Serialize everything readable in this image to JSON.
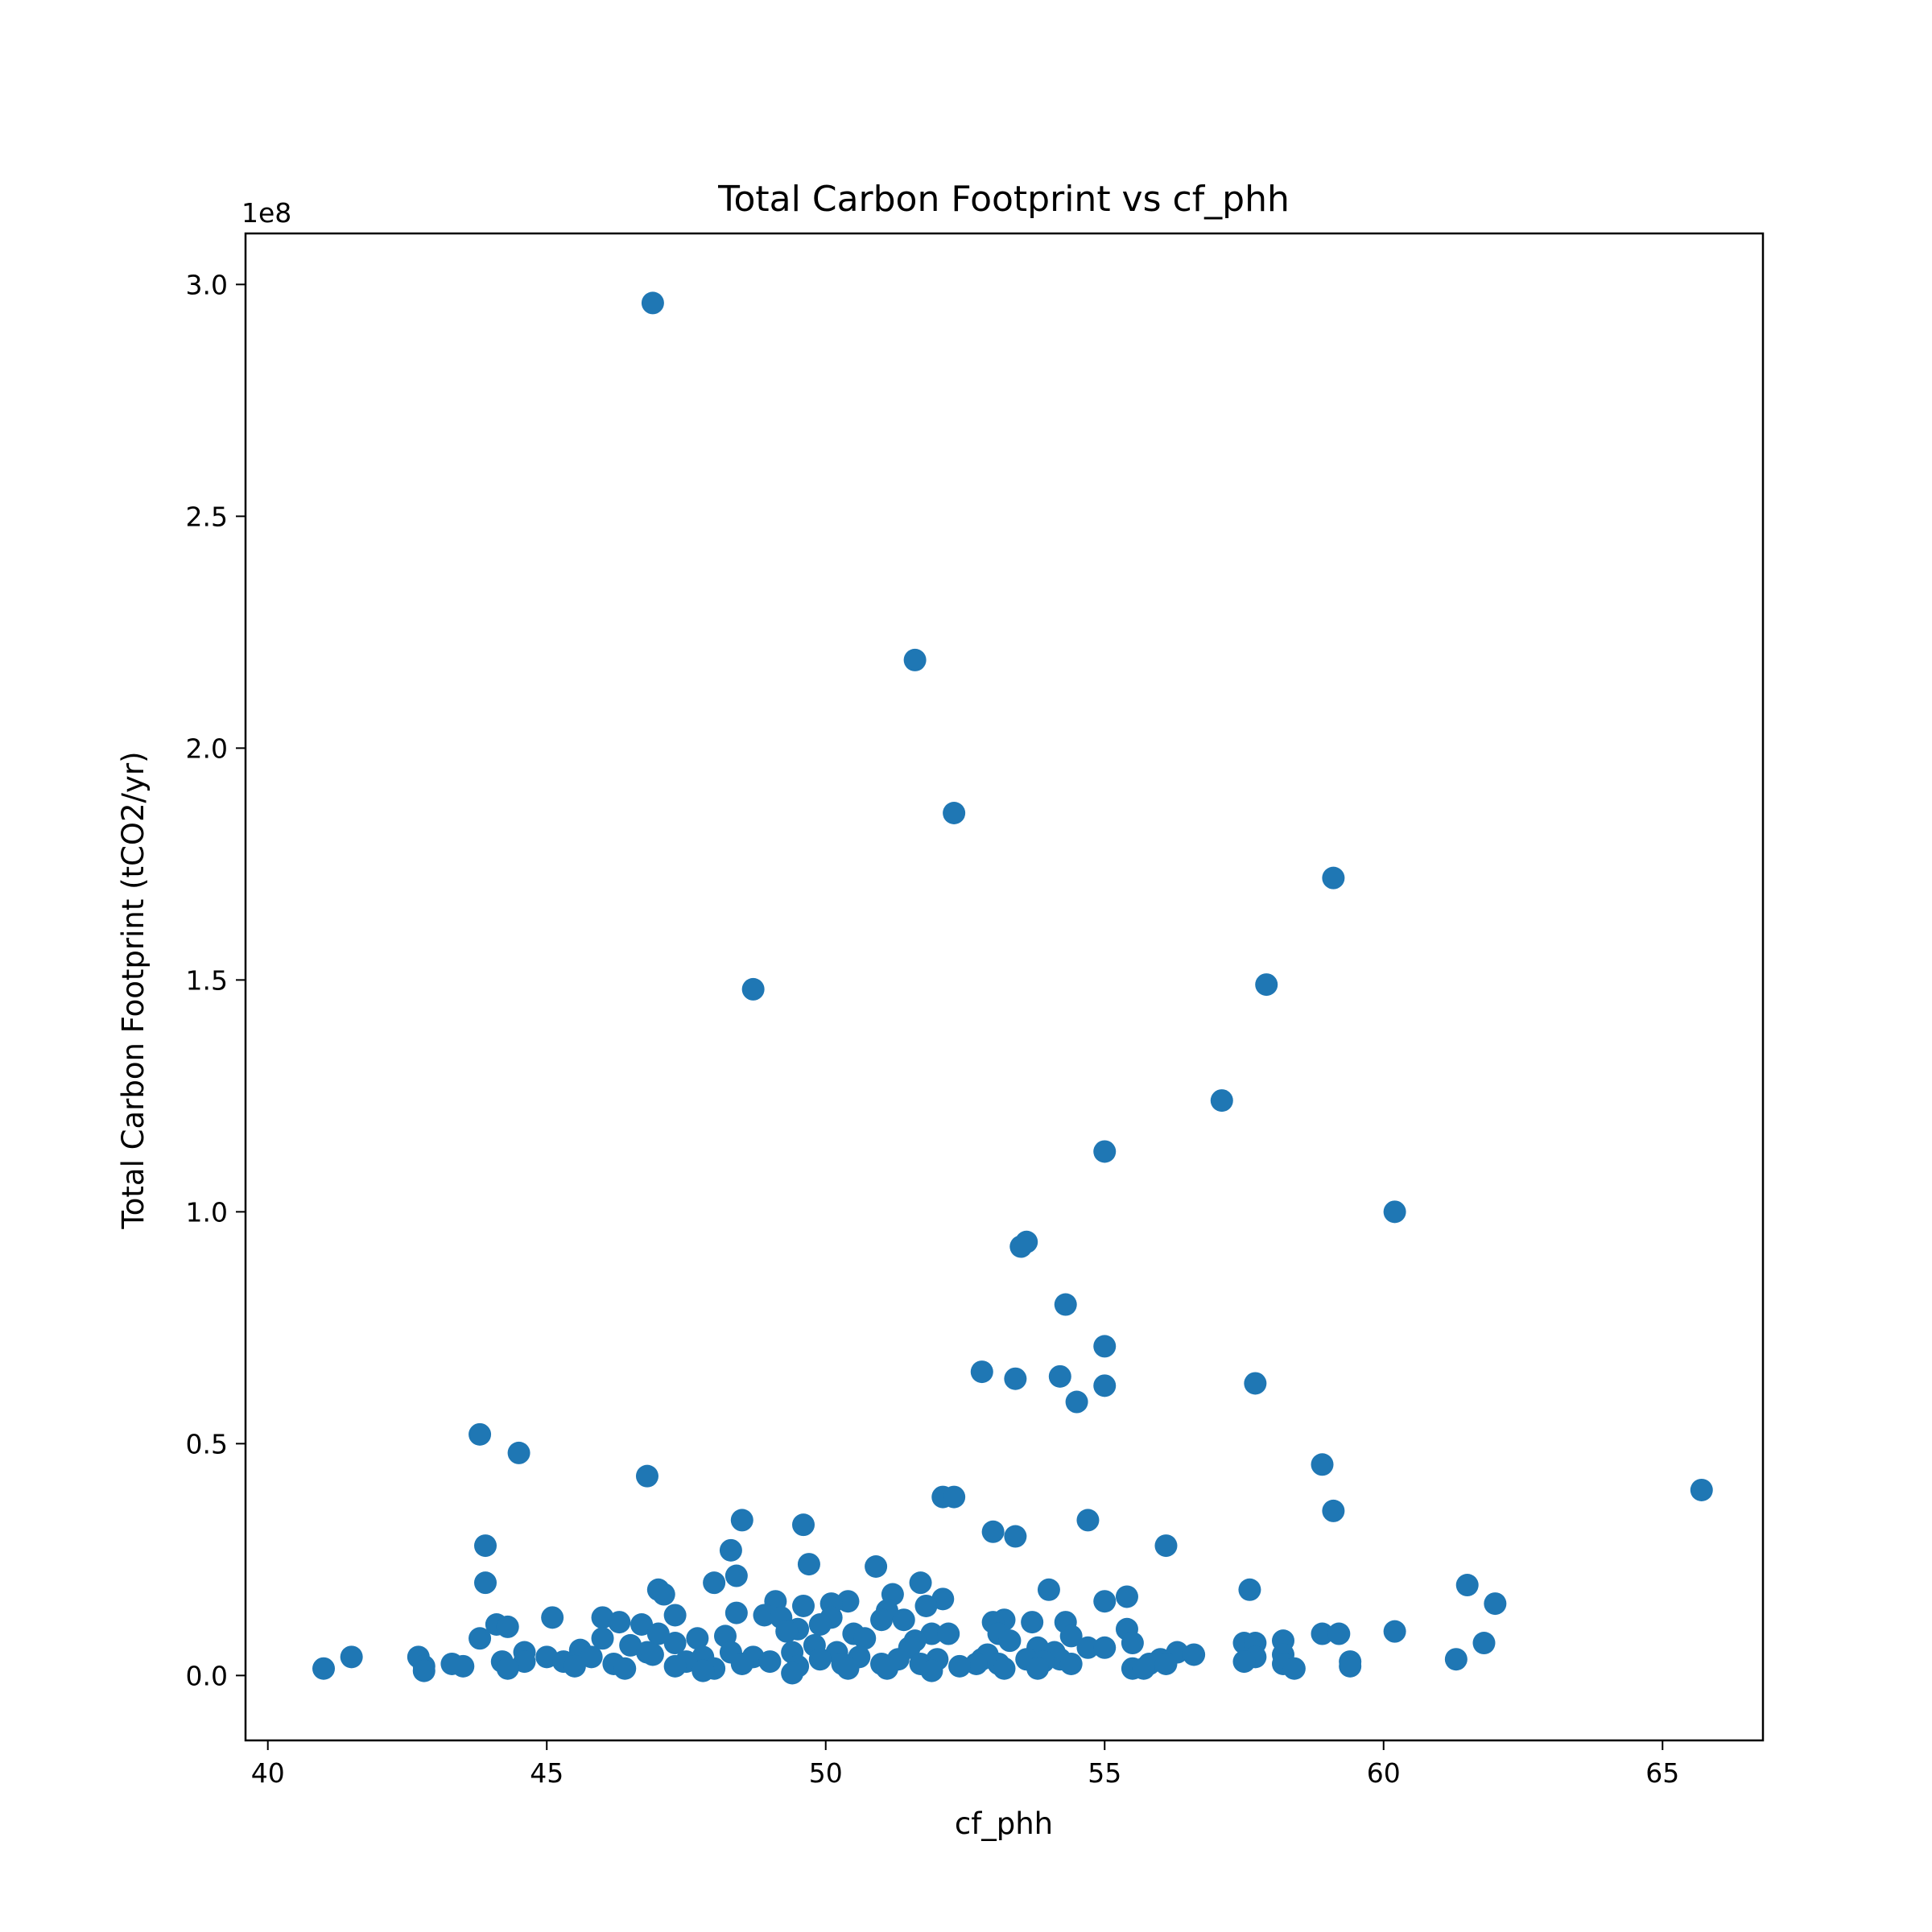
{
  "chart_data": {
    "type": "scatter",
    "title": "Total Carbon Footprint vs cf_phh",
    "xlabel": "cf_phh",
    "ylabel": "Total Carbon Footprint (tCO2/yr)",
    "y_offset_label": "1e8",
    "xlim": [
      39.6,
      66.8
    ],
    "ylim": [
      -0.14,
      3.11
    ],
    "y_unit_multiplier": 100000000,
    "xticks": [
      40,
      45,
      50,
      55,
      60,
      65
    ],
    "xtick_labels": [
      "40",
      "45",
      "50",
      "55",
      "60",
      "65"
    ],
    "yticks": [
      0.0,
      0.5,
      1.0,
      1.5,
      2.0,
      2.5,
      3.0
    ],
    "ytick_labels": [
      "0.0",
      "0.5",
      "1.0",
      "1.5",
      "2.0",
      "2.5",
      "3.0"
    ],
    "grid": false,
    "marker_color": "#1f77b4",
    "series": [
      {
        "points": [
          [
            46.9,
            2.96
          ],
          [
            51.6,
            2.19
          ],
          [
            52.3,
            1.86
          ],
          [
            59.1,
            1.72
          ],
          [
            57.9,
            1.49
          ],
          [
            48.7,
            1.48
          ],
          [
            57.1,
            1.24
          ],
          [
            55.0,
            1.13
          ],
          [
            60.2,
            1.0
          ],
          [
            53.6,
            0.935
          ],
          [
            53.5,
            0.925
          ],
          [
            54.3,
            0.8
          ],
          [
            55.0,
            0.71
          ],
          [
            52.8,
            0.655
          ],
          [
            53.4,
            0.64
          ],
          [
            54.2,
            0.645
          ],
          [
            55.0,
            0.625
          ],
          [
            57.7,
            0.63
          ],
          [
            54.5,
            0.59
          ],
          [
            43.8,
            0.52
          ],
          [
            44.5,
            0.48
          ],
          [
            46.8,
            0.43
          ],
          [
            58.9,
            0.455
          ],
          [
            65.7,
            0.4
          ],
          [
            52.1,
            0.385
          ],
          [
            52.3,
            0.385
          ],
          [
            59.1,
            0.355
          ],
          [
            48.5,
            0.335
          ],
          [
            54.7,
            0.335
          ],
          [
            49.6,
            0.325
          ],
          [
            53.0,
            0.31
          ],
          [
            53.4,
            0.3
          ],
          [
            43.9,
            0.28
          ],
          [
            48.3,
            0.27
          ],
          [
            56.1,
            0.28
          ],
          [
            49.7,
            0.24
          ],
          [
            50.9,
            0.235
          ],
          [
            48.4,
            0.215
          ],
          [
            43.9,
            0.2
          ],
          [
            48.0,
            0.2
          ],
          [
            51.7,
            0.2
          ],
          [
            61.5,
            0.195
          ],
          [
            47.0,
            0.185
          ],
          [
            47.1,
            0.175
          ],
          [
            54.0,
            0.185
          ],
          [
            57.6,
            0.185
          ],
          [
            51.2,
            0.175
          ],
          [
            50.4,
            0.16
          ],
          [
            52.1,
            0.165
          ],
          [
            55.4,
            0.17
          ],
          [
            49.1,
            0.16
          ],
          [
            50.1,
            0.155
          ],
          [
            62.0,
            0.155
          ],
          [
            55.0,
            0.16
          ],
          [
            49.6,
            0.15
          ],
          [
            51.8,
            0.15
          ],
          [
            51.1,
            0.14
          ],
          [
            47.3,
            0.13
          ],
          [
            48.4,
            0.135
          ],
          [
            48.9,
            0.13
          ],
          [
            46.0,
            0.125
          ],
          [
            45.1,
            0.125
          ],
          [
            49.2,
            0.125
          ],
          [
            50.1,
            0.125
          ],
          [
            51.0,
            0.12
          ],
          [
            51.4,
            0.12
          ],
          [
            53.2,
            0.12
          ],
          [
            53.0,
            0.115
          ],
          [
            53.7,
            0.115
          ],
          [
            54.3,
            0.115
          ],
          [
            44.1,
            0.11
          ],
          [
            44.3,
            0.105
          ],
          [
            46.3,
            0.115
          ],
          [
            46.7,
            0.11
          ],
          [
            49.9,
            0.11
          ],
          [
            49.5,
            0.1
          ],
          [
            55.4,
            0.1
          ],
          [
            49.3,
            0.095
          ],
          [
            47.0,
            0.09
          ],
          [
            48.2,
            0.085
          ],
          [
            50.5,
            0.09
          ],
          [
            51.9,
            0.09
          ],
          [
            52.2,
            0.09
          ],
          [
            53.1,
            0.09
          ],
          [
            54.4,
            0.085
          ],
          [
            58.9,
            0.09
          ],
          [
            59.2,
            0.09
          ],
          [
            60.2,
            0.095
          ],
          [
            43.8,
            0.08
          ],
          [
            46.0,
            0.08
          ],
          [
            47.7,
            0.08
          ],
          [
            50.7,
            0.08
          ],
          [
            51.6,
            0.075
          ],
          [
            53.3,
            0.075
          ],
          [
            58.2,
            0.075
          ],
          [
            55.5,
            0.07
          ],
          [
            57.5,
            0.07
          ],
          [
            57.7,
            0.07
          ],
          [
            61.8,
            0.07
          ],
          [
            47.3,
            0.07
          ],
          [
            46.5,
            0.065
          ],
          [
            49.8,
            0.065
          ],
          [
            51.5,
            0.06
          ],
          [
            53.8,
            0.06
          ],
          [
            54.7,
            0.06
          ],
          [
            55.0,
            0.06
          ],
          [
            45.6,
            0.055
          ],
          [
            44.6,
            0.05
          ],
          [
            46.8,
            0.05
          ],
          [
            48.3,
            0.05
          ],
          [
            49.4,
            0.05
          ],
          [
            50.2,
            0.05
          ],
          [
            52.9,
            0.045
          ],
          [
            54.1,
            0.05
          ],
          [
            56.3,
            0.05
          ],
          [
            56.6,
            0.045
          ],
          [
            58.2,
            0.045
          ],
          [
            57.7,
            0.04
          ],
          [
            41.5,
            0.04
          ],
          [
            42.7,
            0.04
          ],
          [
            45.0,
            0.04
          ],
          [
            45.8,
            0.04
          ],
          [
            46.9,
            0.045
          ],
          [
            47.8,
            0.04
          ],
          [
            48.7,
            0.04
          ],
          [
            49.9,
            0.035
          ],
          [
            50.6,
            0.04
          ],
          [
            51.3,
            0.035
          ],
          [
            52.0,
            0.035
          ],
          [
            52.8,
            0.035
          ],
          [
            53.6,
            0.035
          ],
          [
            54.2,
            0.035
          ],
          [
            56.0,
            0.035
          ],
          [
            57.5,
            0.03
          ],
          [
            61.3,
            0.035
          ],
          [
            59.4,
            0.03
          ],
          [
            43.3,
            0.025
          ],
          [
            44.6,
            0.03
          ],
          [
            44.2,
            0.03
          ],
          [
            45.3,
            0.03
          ],
          [
            46.2,
            0.025
          ],
          [
            47.5,
            0.03
          ],
          [
            48.5,
            0.025
          ],
          [
            49.0,
            0.03
          ],
          [
            50.3,
            0.025
          ],
          [
            51.0,
            0.025
          ],
          [
            51.7,
            0.025
          ],
          [
            52.7,
            0.025
          ],
          [
            53.1,
            0.025
          ],
          [
            53.9,
            0.03
          ],
          [
            54.4,
            0.025
          ],
          [
            55.8,
            0.025
          ],
          [
            56.1,
            0.025
          ],
          [
            58.2,
            0.025
          ],
          [
            42.8,
            0.02
          ],
          [
            43.5,
            0.02
          ],
          [
            44.3,
            0.015
          ],
          [
            45.5,
            0.02
          ],
          [
            46.4,
            0.015
          ],
          [
            47.3,
            0.02
          ],
          [
            48.0,
            0.015
          ],
          [
            49.5,
            0.02
          ],
          [
            50.4,
            0.015
          ],
          [
            51.1,
            0.015
          ],
          [
            52.4,
            0.02
          ],
          [
            53.2,
            0.015
          ],
          [
            53.8,
            0.015
          ],
          [
            55.5,
            0.015
          ],
          [
            55.7,
            0.015
          ],
          [
            58.4,
            0.015
          ],
          [
            59.4,
            0.02
          ],
          [
            41.0,
            0.015
          ],
          [
            42.8,
            0.01
          ],
          [
            47.8,
            0.01
          ],
          [
            49.4,
            0.005
          ],
          [
            51.9,
            0.01
          ]
        ]
      }
    ]
  }
}
